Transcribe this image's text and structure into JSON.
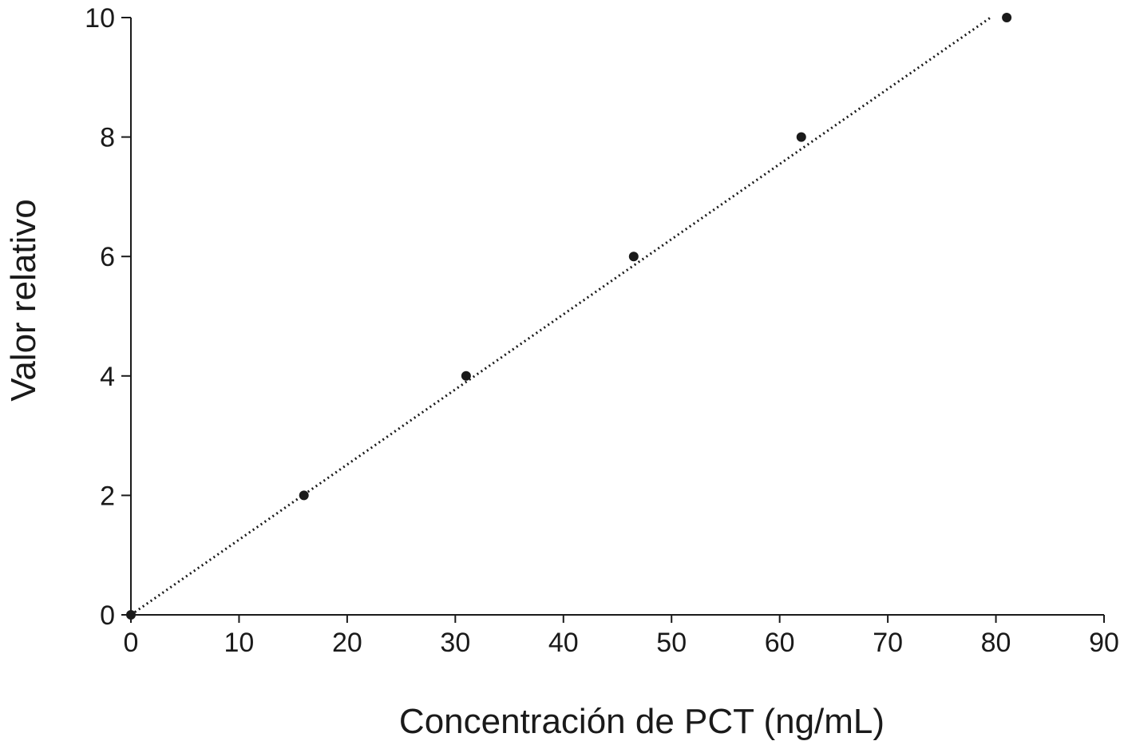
{
  "chart_data": {
    "type": "scatter",
    "title": "",
    "xlabel": "Concentración de PCT (ng/mL)",
    "ylabel": "Valor relativo",
    "xlim": [
      0,
      90
    ],
    "ylim": [
      0,
      10
    ],
    "xticks": [
      "0",
      "10",
      "20",
      "30",
      "40",
      "50",
      "60",
      "70",
      "80",
      "90"
    ],
    "yticks": [
      "0",
      "2",
      "4",
      "6",
      "8",
      "10"
    ],
    "grid": false,
    "series": [
      {
        "points": [
          {
            "x": 0,
            "y": 0
          },
          {
            "x": 16,
            "y": 2
          },
          {
            "x": 31,
            "y": 4
          },
          {
            "x": 46.5,
            "y": 6
          },
          {
            "x": 62,
            "y": 8
          },
          {
            "x": 81,
            "y": 10
          }
        ]
      }
    ],
    "trendline": {
      "style": "dotted",
      "x": [
        0,
        79.5
      ],
      "y": [
        0,
        10
      ]
    },
    "colors": {
      "points": "#1a1a1a",
      "axes": "#1a1a1a"
    }
  }
}
